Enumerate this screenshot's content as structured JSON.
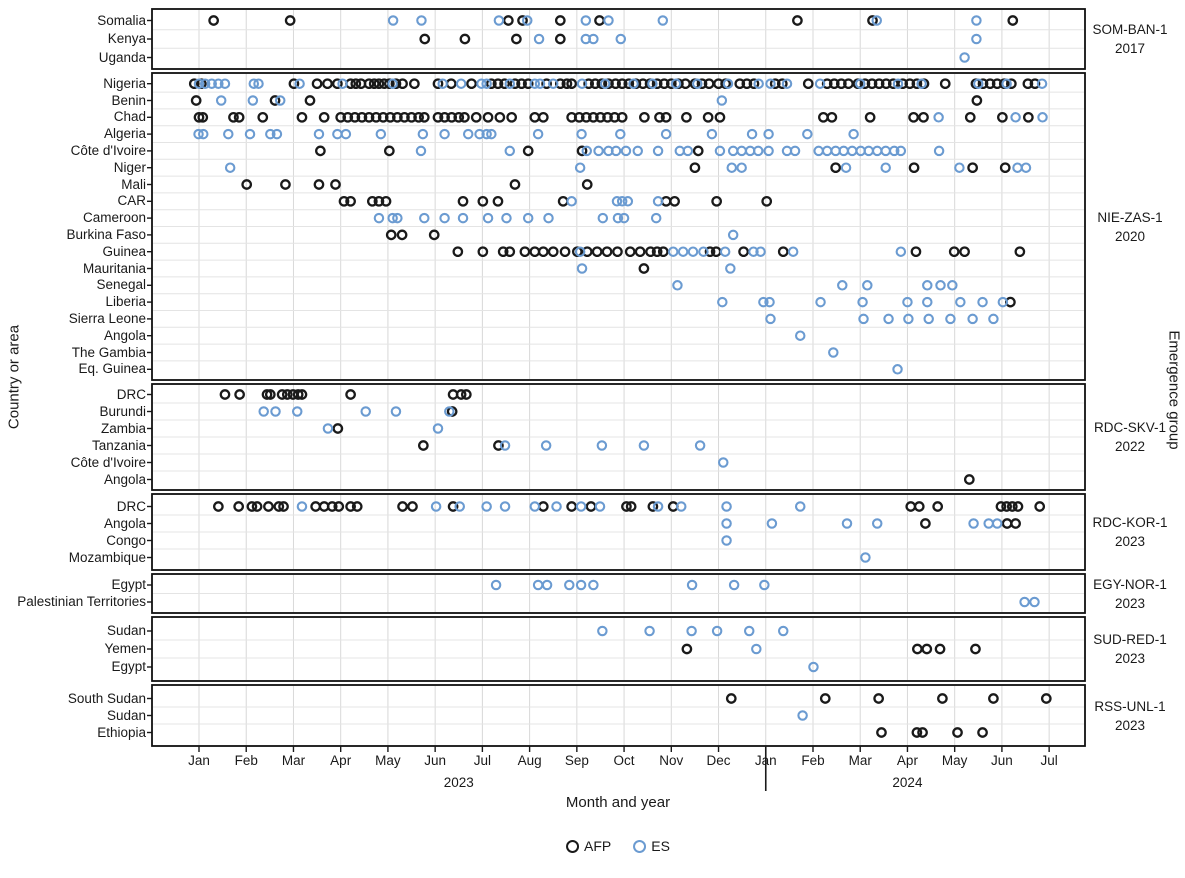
{
  "figure": {
    "y_axis_label": "Country or area",
    "x_axis_label": "Month and year",
    "right_axis_label": "Emergence group"
  },
  "chart_data": {
    "type": "scatter",
    "title": "",
    "grid": true,
    "legend": [
      {
        "label": "AFP",
        "color": "#1a1a1a"
      },
      {
        "label": "ES",
        "color": "#6b9bd1"
      }
    ],
    "x_axis": {
      "months": [
        "Jan",
        "Feb",
        "Mar",
        "Apr",
        "May",
        "Jun",
        "Jul",
        "Aug",
        "Sep",
        "Oct",
        "Nov",
        "Dec",
        "Jan",
        "Feb",
        "Mar",
        "Apr",
        "May",
        "Jun",
        "Jul"
      ],
      "years": [
        {
          "label": "2023",
          "m": 5.5
        },
        {
          "label": "2024",
          "m": 15
        }
      ],
      "year_separator_m": 12
    },
    "panels": [
      {
        "group": "SOM-BAN-1",
        "year": "2017",
        "rows": [
          {
            "country": "Somalia",
            "afp": [
              0.31,
              1.93,
              6.55,
              6.85,
              7.65,
              8.48,
              12.67,
              14.26,
              17.23
            ],
            "es": [
              4.11,
              4.71,
              6.35,
              6.95,
              8.19,
              8.67,
              9.82,
              14.35,
              16.46
            ]
          },
          {
            "country": "Kenya",
            "afp": [
              4.78,
              5.63,
              6.72,
              7.65
            ],
            "es": [
              7.2,
              8.19,
              8.35,
              8.93,
              16.46
            ]
          },
          {
            "country": "Uganda",
            "afp": [],
            "es": [
              16.21
            ]
          }
        ]
      },
      {
        "group": "NIE-ZAS-1",
        "year": "2020",
        "rows": [
          {
            "country": "Nigeria",
            "afp": [
              -0.1,
              0.05,
              2.01,
              2.5,
              2.72,
              2.93,
              3.21,
              3.32,
              3.43,
              3.6,
              3.71,
              3.81,
              3.92,
              4.03,
              4.17,
              4.31,
              4.56,
              5.06,
              5.34,
              5.77,
              6.19,
              6.33,
              6.47,
              6.69,
              6.83,
              6.97,
              7.36,
              7.65,
              7.79,
              7.89,
              8.25,
              8.39,
              8.53,
              8.67,
              8.82,
              8.96,
              9.1,
              9.25,
              9.4,
              9.55,
              9.7,
              9.85,
              10.0,
              10.15,
              10.3,
              10.5,
              10.65,
              10.8,
              11.0,
              11.15,
              11.45,
              11.6,
              11.75,
              12.2,
              12.35,
              12.9,
              13.3,
              13.45,
              13.6,
              13.75,
              13.95,
              14.1,
              14.25,
              14.4,
              14.55,
              14.7,
              14.9,
              15.05,
              15.2,
              15.35,
              15.8,
              16.45,
              16.6,
              16.75,
              16.9,
              17.05,
              17.2,
              17.55,
              17.7
            ],
            "es": [
              0.0,
              0.13,
              0.27,
              0.41,
              0.55,
              1.16,
              1.26,
              2.13,
              3.04,
              4.1,
              5.16,
              5.55,
              5.98,
              6.09,
              6.58,
              7.11,
              7.22,
              7.5,
              8.11,
              8.6,
              9.2,
              9.6,
              10.1,
              10.55,
              11.2,
              11.85,
              12.1,
              12.45,
              13.15,
              14.0,
              14.8,
              15.3,
              16.5,
              17.1,
              17.85
            ]
          },
          {
            "country": "Benin",
            "afp": [
              -0.06,
              1.61,
              2.35,
              16.47
            ],
            "es": [
              0.47,
              1.14,
              1.72,
              11.07
            ]
          },
          {
            "country": "Chad",
            "afp": [
              0.0,
              0.08,
              0.73,
              0.85,
              1.35,
              2.18,
              2.65,
              3.0,
              3.15,
              3.3,
              3.45,
              3.6,
              3.75,
              3.9,
              4.05,
              4.2,
              4.35,
              4.5,
              4.65,
              4.77,
              5.06,
              5.2,
              5.35,
              5.5,
              5.62,
              5.87,
              6.12,
              6.37,
              6.62,
              7.11,
              7.29,
              7.89,
              8.05,
              8.2,
              8.35,
              8.5,
              8.65,
              8.8,
              8.96,
              9.43,
              9.75,
              9.89,
              10.32,
              10.78,
              11.03,
              13.22,
              13.4,
              14.21,
              15.13,
              15.34,
              16.33,
              17.01,
              17.56
            ],
            "es": [
              15.66,
              17.29,
              17.86
            ]
          },
          {
            "country": "Algeria",
            "afp": [],
            "es": [
              -0.01,
              0.09,
              0.62,
              1.08,
              1.51,
              1.65,
              2.54,
              2.93,
              3.11,
              3.85,
              4.74,
              5.2,
              5.7,
              5.94,
              6.09,
              6.19,
              7.18,
              8.1,
              8.92,
              9.89,
              10.86,
              11.71,
              12.06,
              12.88,
              13.86
            ]
          },
          {
            "country": "Côte d'Ivoire",
            "afp": [
              2.57,
              4.03,
              6.97,
              8.11,
              10.57
            ],
            "es": [
              4.7,
              6.58,
              8.21,
              8.46,
              8.67,
              8.83,
              9.04,
              9.29,
              9.72,
              10.18,
              10.35,
              11.03,
              11.31,
              11.49,
              11.67,
              11.84,
              12.06,
              12.45,
              12.62,
              13.12,
              13.3,
              13.48,
              13.65,
              13.83,
              14.01,
              14.18,
              14.36,
              14.54,
              14.72,
              14.86,
              15.67
            ]
          },
          {
            "country": "Niger",
            "afp": [
              10.5,
              13.48,
              15.14,
              16.38,
              17.07
            ],
            "es": [
              0.66,
              8.07,
              11.28,
              11.49,
              13.7,
              14.54,
              16.1,
              17.33,
              17.51
            ]
          },
          {
            "country": "Mali",
            "afp": [
              1.01,
              1.83,
              2.54,
              2.89,
              6.69,
              8.22
            ],
            "es": []
          },
          {
            "country": "CAR",
            "afp": [
              3.07,
              3.21,
              3.67,
              3.81,
              3.96,
              5.59,
              6.01,
              6.33,
              7.71,
              9.89,
              10.07,
              10.96,
              12.02
            ],
            "es": [
              7.89,
              8.85,
              8.96,
              9.08,
              9.72
            ]
          },
          {
            "country": "Cameroon",
            "afp": [],
            "es": [
              3.81,
              4.1,
              4.2,
              4.77,
              5.2,
              5.59,
              6.12,
              6.51,
              6.97,
              7.4,
              8.55,
              8.87,
              9.0,
              9.68
            ]
          },
          {
            "country": "Burkina Faso",
            "afp": [
              4.07,
              4.3,
              4.98
            ],
            "es": [
              11.31
            ]
          },
          {
            "country": "Guinea",
            "afp": [
              5.48,
              6.01,
              6.44,
              6.58,
              6.9,
              7.11,
              7.29,
              7.5,
              7.75,
              8.01,
              8.22,
              8.43,
              8.64,
              8.86,
              9.13,
              9.34,
              9.56,
              9.7,
              9.83,
              10.82,
              10.95,
              11.53,
              12.37,
              15.18,
              15.99,
              16.21,
              17.38
            ],
            "es": [
              8.07,
              10.04,
              10.25,
              10.46,
              10.68,
              11.14,
              11.74,
              11.89,
              12.58,
              14.86
            ]
          },
          {
            "country": "Mauritania",
            "afp": [
              9.42
            ],
            "es": [
              8.11,
              11.25
            ]
          },
          {
            "country": "Senegal",
            "afp": [],
            "es": [
              10.13,
              13.62,
              14.15,
              15.42,
              15.7,
              15.95
            ]
          },
          {
            "country": "Liberia",
            "afp": [
              17.18
            ],
            "es": [
              11.08,
              11.95,
              12.08,
              13.16,
              14.05,
              15.0,
              15.42,
              16.12,
              16.59,
              17.02
            ]
          },
          {
            "country": "Sierra Leone",
            "afp": [],
            "es": [
              12.1,
              14.07,
              14.6,
              15.02,
              15.45,
              15.91,
              16.38,
              16.82
            ]
          },
          {
            "country": "Angola",
            "afp": [],
            "es": [
              12.73
            ]
          },
          {
            "country": "The Gambia",
            "afp": [],
            "es": [
              13.43
            ]
          },
          {
            "country": "Eq. Guinea",
            "afp": [],
            "es": [
              14.79
            ]
          }
        ]
      },
      {
        "group": "RDC-SKV-1",
        "year": "2022",
        "rows": [
          {
            "country": "DRC",
            "afp": [
              0.55,
              0.86,
              1.44,
              1.51,
              1.76,
              1.87,
              1.99,
              2.1,
              2.18,
              3.21,
              5.38,
              5.55,
              5.66
            ],
            "es": []
          },
          {
            "country": "Burundi",
            "afp": [
              5.36
            ],
            "es": [
              1.37,
              1.62,
              2.08,
              3.53,
              4.17,
              5.3
            ]
          },
          {
            "country": "Zambia",
            "afp": [
              2.94
            ],
            "es": [
              2.73,
              5.06
            ]
          },
          {
            "country": "Tanzania",
            "afp": [
              4.75,
              6.34
            ],
            "es": [
              6.48,
              7.35,
              8.53,
              9.42,
              10.61
            ]
          },
          {
            "country": "Côte d'Ivoire",
            "afp": [],
            "es": [
              11.1
            ]
          },
          {
            "country": "Angola",
            "afp": [
              16.31
            ],
            "es": []
          }
        ]
      },
      {
        "group": "RDC-KOR-1",
        "year": "2023",
        "rows": [
          {
            "country": "DRC",
            "afp": [
              0.41,
              0.84,
              1.12,
              1.23,
              1.47,
              1.69,
              1.79,
              2.47,
              2.65,
              2.82,
              2.96,
              3.21,
              3.35,
              4.31,
              4.52,
              5.38,
              7.29,
              7.89,
              8.3,
              9.05,
              9.15,
              9.61,
              10.04,
              15.07,
              15.25,
              15.64,
              16.98,
              17.1,
              17.22,
              17.34,
              17.8
            ],
            "es": [
              2.18,
              5.02,
              5.52,
              6.09,
              6.48,
              7.11,
              7.57,
              8.09,
              8.49,
              9.72,
              10.21,
              11.17,
              12.73
            ]
          },
          {
            "country": "Angola",
            "afp": [
              15.38,
              17.11,
              17.29
            ],
            "es": [
              11.17,
              12.13,
              13.72,
              14.36,
              16.4,
              16.72,
              16.9
            ]
          },
          {
            "country": "Congo",
            "afp": [],
            "es": [
              11.17
            ]
          },
          {
            "country": "Mozambique",
            "afp": [],
            "es": [
              14.11
            ]
          }
        ]
      },
      {
        "group": "EGY-NOR-1",
        "year": "2023",
        "rows": [
          {
            "country": "Egypt",
            "afp": [],
            "es": [
              6.29,
              7.18,
              7.37,
              7.84,
              8.09,
              8.35,
              10.44,
              11.33,
              11.97
            ]
          },
          {
            "country": "Palestinian Territories",
            "afp": [],
            "es": [
              17.48,
              17.69
            ]
          }
        ]
      },
      {
        "group": "SUD-RED-1",
        "year": "2023",
        "rows": [
          {
            "country": "Sudan",
            "afp": [],
            "es": [
              8.54,
              9.54,
              10.43,
              10.97,
              11.65,
              12.37
            ]
          },
          {
            "country": "Yemen",
            "afp": [
              10.33,
              15.21,
              15.41,
              15.69,
              16.44
            ],
            "es": [
              11.8
            ]
          },
          {
            "country": "Egypt",
            "afp": [],
            "es": [
              13.01
            ]
          }
        ]
      },
      {
        "group": "RSS-UNL-1",
        "year": "2023",
        "rows": [
          {
            "country": "South Sudan",
            "afp": [
              11.27,
              13.26,
              14.39,
              15.74,
              16.82,
              17.94
            ],
            "es": []
          },
          {
            "country": "Sudan",
            "afp": [],
            "es": [
              12.78
            ]
          },
          {
            "country": "Ethiopia",
            "afp": [
              14.45,
              15.2,
              15.32,
              16.06,
              16.59
            ],
            "es": []
          }
        ]
      }
    ]
  }
}
